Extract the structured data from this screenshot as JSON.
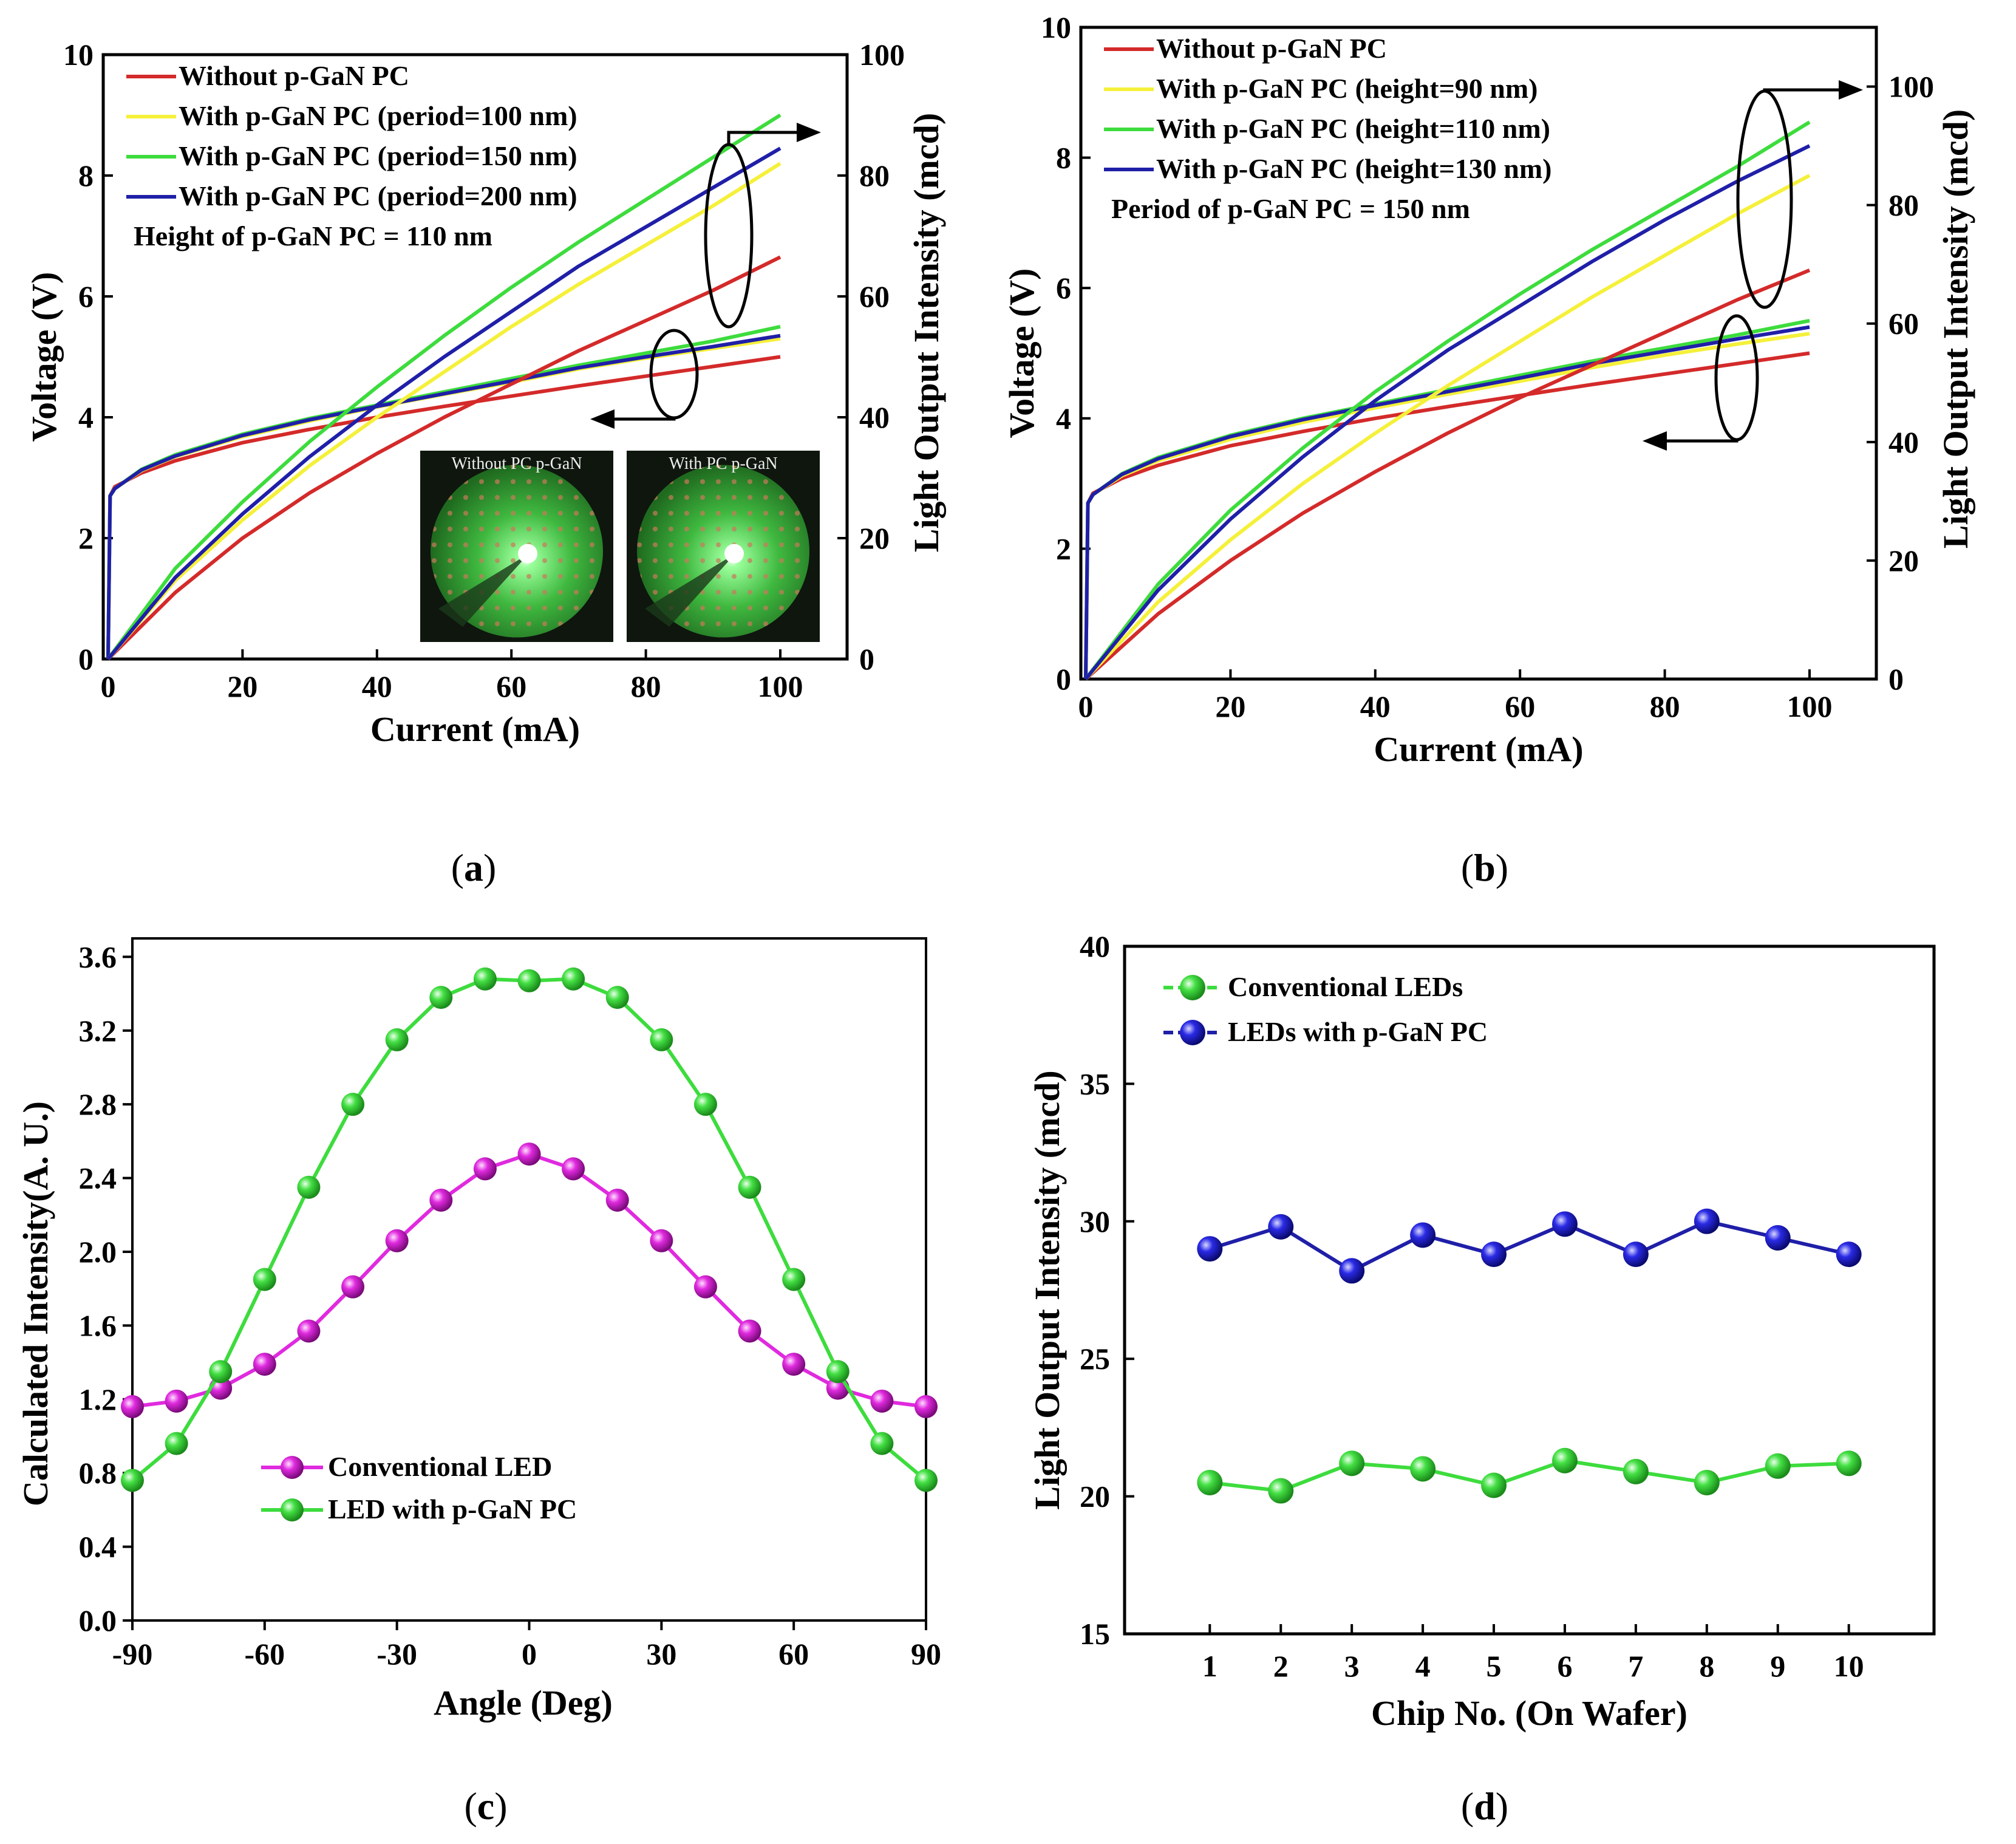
{
  "panels": {
    "a": {
      "caption": "a",
      "xlabel": "Current (mA)",
      "ylabel_left": "Voltage (V)",
      "ylabel_right": "Light Output Intensity (mcd)",
      "xticks": [
        "0",
        "20",
        "40",
        "60",
        "80",
        "100"
      ],
      "yticks_left": [
        "0",
        "2",
        "4",
        "6",
        "8",
        "10"
      ],
      "yticks_right": [
        "0",
        "20",
        "40",
        "60",
        "80",
        "100"
      ],
      "note": "Height of p-GaN PC = 110 nm",
      "legend": [
        "Without p-GaN PC",
        "With p-GaN PC (period=100 nm)",
        "With p-GaN PC (period=150 nm)",
        "With p-GaN PC (period=200 nm)"
      ],
      "inset_labels": [
        "Without PC p-GaN",
        "With PC p-GaN"
      ]
    },
    "b": {
      "caption": "b",
      "xlabel": "Current (mA)",
      "ylabel_left": "Voltage (V)",
      "ylabel_right": "Light Output Intensity (mcd)",
      "xticks": [
        "0",
        "20",
        "40",
        "60",
        "80",
        "100"
      ],
      "yticks_left": [
        "0",
        "2",
        "4",
        "6",
        "8",
        "10"
      ],
      "yticks_right": [
        "0",
        "20",
        "40",
        "60",
        "80",
        "100"
      ],
      "note": "Period of p-GaN PC = 150 nm",
      "legend": [
        "Without p-GaN PC",
        "With p-GaN PC (height=90 nm)",
        "With p-GaN PC (height=110 nm)",
        "With p-GaN PC (height=130 nm)"
      ]
    },
    "c": {
      "caption": "c",
      "xlabel": "Angle (Deg)",
      "ylabel": "Calculated Intensity(A. U.)",
      "xticks": [
        "-90",
        "-60",
        "-30",
        "0",
        "30",
        "60",
        "90"
      ],
      "yticks": [
        "0.0",
        "0.4",
        "0.8",
        "1.2",
        "1.6",
        "2.0",
        "2.4",
        "2.8",
        "3.2",
        "3.6"
      ],
      "legend": [
        "Conventional LED",
        "LED with p-GaN PC"
      ]
    },
    "d": {
      "caption": "d",
      "xlabel": "Chip No. (On Wafer)",
      "ylabel": "Light Output Intensity (mcd)",
      "xticks": [
        "1",
        "2",
        "3",
        "4",
        "5",
        "6",
        "7",
        "8",
        "9",
        "10"
      ],
      "yticks": [
        "15",
        "20",
        "25",
        "30",
        "35",
        "40"
      ],
      "legend": [
        "Conventional LEDs",
        "LEDs with p-GaN PC"
      ]
    }
  },
  "colors": {
    "red": "#d42a2a",
    "yellow": "#f5f03a",
    "green": "#3ddc3d",
    "blue": "#1f1fa8",
    "magenta": "#e02adf",
    "green_marker": "#44e044",
    "blue_marker": "#1a1ae0"
  },
  "chart_data": [
    {
      "id": "a",
      "type": "line",
      "title": "",
      "xlabel": "Current (mA)",
      "ylabel": "Voltage (V)",
      "y2label": "Light Output Intensity (mcd)",
      "xlim": [
        0,
        100
      ],
      "ylim": [
        0,
        10
      ],
      "y2lim": [
        0,
        100
      ],
      "series": [
        {
          "name": "Without p-GaN PC",
          "axis": "left",
          "x": [
            0,
            0.3,
            1,
            5,
            10,
            20,
            30,
            40,
            50,
            60,
            70,
            80,
            90,
            100
          ],
          "values": [
            0,
            2.7,
            2.85,
            3.08,
            3.28,
            3.58,
            3.8,
            4.0,
            4.18,
            4.35,
            4.52,
            4.68,
            4.84,
            5.0
          ]
        },
        {
          "name": "With p-GaN PC (period=100 nm)",
          "axis": "left",
          "x": [
            0,
            0.3,
            1,
            5,
            10,
            20,
            30,
            40,
            50,
            60,
            70,
            80,
            90,
            100
          ],
          "values": [
            0,
            2.7,
            2.82,
            3.12,
            3.35,
            3.68,
            3.94,
            4.17,
            4.38,
            4.58,
            4.8,
            4.98,
            5.14,
            5.3
          ]
        },
        {
          "name": "With p-GaN PC (period=150 nm)",
          "axis": "left",
          "x": [
            0,
            0.3,
            1,
            5,
            10,
            20,
            30,
            40,
            50,
            60,
            70,
            80,
            90,
            100
          ],
          "values": [
            0,
            2.7,
            2.82,
            3.14,
            3.38,
            3.72,
            3.98,
            4.2,
            4.42,
            4.64,
            4.86,
            5.06,
            5.26,
            5.5
          ]
        },
        {
          "name": "With p-GaN PC (period=200 nm)",
          "axis": "left",
          "x": [
            0,
            0.3,
            1,
            5,
            10,
            20,
            30,
            40,
            50,
            60,
            70,
            80,
            90,
            100
          ],
          "values": [
            0,
            2.7,
            2.82,
            3.13,
            3.36,
            3.7,
            3.96,
            4.18,
            4.39,
            4.6,
            4.82,
            5.0,
            5.17,
            5.35
          ]
        },
        {
          "name": "Without p-GaN PC",
          "axis": "right",
          "x": [
            0,
            10,
            20,
            30,
            40,
            50,
            60,
            70,
            80,
            90,
            100
          ],
          "values": [
            0,
            11,
            20,
            27.5,
            34,
            40,
            45.5,
            51,
            56,
            61,
            66.5
          ]
        },
        {
          "name": "With p-GaN PC (period=100 nm)",
          "axis": "right",
          "x": [
            0,
            10,
            20,
            30,
            40,
            50,
            60,
            70,
            80,
            90,
            100
          ],
          "values": [
            0,
            13,
            23,
            32,
            40,
            47.5,
            55,
            62,
            68.5,
            75,
            82
          ]
        },
        {
          "name": "With p-GaN PC (period=150 nm)",
          "axis": "right",
          "x": [
            0,
            10,
            20,
            30,
            40,
            50,
            60,
            70,
            80,
            90,
            100
          ],
          "values": [
            0,
            15,
            26,
            36,
            45,
            53.5,
            61.5,
            69,
            76,
            83,
            90
          ]
        },
        {
          "name": "With p-GaN PC (period=200 nm)",
          "axis": "right",
          "x": [
            0,
            10,
            20,
            30,
            40,
            50,
            60,
            70,
            80,
            90,
            100
          ],
          "values": [
            0,
            13.5,
            24,
            33.5,
            42,
            50,
            57.5,
            65,
            71.5,
            78,
            84.5
          ]
        }
      ]
    },
    {
      "id": "b",
      "type": "line",
      "title": "",
      "xlabel": "Current (mA)",
      "ylabel": "Voltage (V)",
      "y2label": "Light Output Intensity (mcd)",
      "xlim": [
        0,
        100
      ],
      "ylim": [
        0,
        10
      ],
      "y2lim": [
        0,
        110
      ],
      "series": [
        {
          "name": "Without p-GaN PC",
          "axis": "left",
          "x": [
            0,
            0.3,
            1,
            5,
            10,
            20,
            30,
            40,
            50,
            60,
            70,
            80,
            90,
            100
          ],
          "values": [
            0,
            2.7,
            2.85,
            3.08,
            3.28,
            3.58,
            3.8,
            4.0,
            4.18,
            4.35,
            4.52,
            4.68,
            4.84,
            5.0
          ]
        },
        {
          "name": "With p-GaN PC (height=90 nm)",
          "axis": "left",
          "x": [
            0,
            0.3,
            1,
            5,
            10,
            20,
            30,
            40,
            50,
            60,
            70,
            80,
            90,
            100
          ],
          "values": [
            0,
            2.7,
            2.83,
            3.12,
            3.35,
            3.68,
            3.94,
            4.16,
            4.37,
            4.57,
            4.78,
            4.97,
            5.14,
            5.3
          ]
        },
        {
          "name": "With p-GaN PC (height=110 nm)",
          "axis": "left",
          "x": [
            0,
            0.3,
            1,
            5,
            10,
            20,
            30,
            40,
            50,
            60,
            70,
            80,
            90,
            100
          ],
          "values": [
            0,
            2.7,
            2.83,
            3.15,
            3.4,
            3.74,
            4.0,
            4.22,
            4.44,
            4.66,
            4.88,
            5.08,
            5.28,
            5.5
          ]
        },
        {
          "name": "With p-GaN PC (height=130 nm)",
          "axis": "left",
          "x": [
            0,
            0.3,
            1,
            5,
            10,
            20,
            30,
            40,
            50,
            60,
            70,
            80,
            90,
            100
          ],
          "values": [
            0,
            2.7,
            2.83,
            3.14,
            3.38,
            3.72,
            3.98,
            4.2,
            4.41,
            4.62,
            4.84,
            5.03,
            5.22,
            5.4
          ]
        },
        {
          "name": "Without p-GaN PC",
          "axis": "right",
          "x": [
            0,
            10,
            20,
            30,
            40,
            50,
            60,
            70,
            80,
            90,
            100
          ],
          "values": [
            0,
            11,
            20,
            28,
            35,
            41.5,
            47.5,
            53,
            58.5,
            64,
            69
          ]
        },
        {
          "name": "With p-GaN PC (height=90 nm)",
          "axis": "right",
          "x": [
            0,
            10,
            20,
            30,
            40,
            50,
            60,
            70,
            80,
            90,
            100
          ],
          "values": [
            0,
            13,
            23.5,
            33,
            41.5,
            49.5,
            57,
            64.5,
            71.5,
            78.5,
            85
          ]
        },
        {
          "name": "With p-GaN PC (height=110 nm)",
          "axis": "right",
          "x": [
            0,
            10,
            20,
            30,
            40,
            50,
            60,
            70,
            80,
            90,
            100
          ],
          "values": [
            0,
            16,
            28.5,
            39,
            48.5,
            57,
            65,
            72.5,
            79.5,
            86.5,
            94
          ]
        },
        {
          "name": "With p-GaN PC (height=130 nm)",
          "axis": "right",
          "x": [
            0,
            10,
            20,
            30,
            40,
            50,
            60,
            70,
            80,
            90,
            100
          ],
          "values": [
            0,
            15,
            27,
            37.5,
            47,
            55.5,
            63,
            70.5,
            77.5,
            84,
            90
          ]
        }
      ]
    },
    {
      "id": "c",
      "type": "line",
      "title": "",
      "xlabel": "Angle (Deg)",
      "ylabel": "Calculated Intensity(A. U.)",
      "xlim": [
        -90,
        90
      ],
      "ylim": [
        0,
        3.7
      ],
      "x": [
        -90,
        -80,
        -70,
        -60,
        -50,
        -40,
        -30,
        -20,
        -10,
        0,
        10,
        20,
        30,
        40,
        50,
        60,
        70,
        80,
        90
      ],
      "series": [
        {
          "name": "Conventional LED",
          "values": [
            1.16,
            1.19,
            1.26,
            1.39,
            1.57,
            1.81,
            2.06,
            2.28,
            2.45,
            2.53,
            2.45,
            2.28,
            2.06,
            1.81,
            1.57,
            1.39,
            1.26,
            1.19,
            1.16
          ]
        },
        {
          "name": "LED with p-GaN PC",
          "values": [
            0.76,
            0.96,
            1.35,
            1.85,
            2.35,
            2.8,
            3.15,
            3.38,
            3.48,
            3.47,
            3.48,
            3.38,
            3.15,
            2.8,
            2.35,
            1.85,
            1.35,
            0.96,
            0.76
          ]
        }
      ]
    },
    {
      "id": "d",
      "type": "line",
      "title": "",
      "xlabel": "Chip No. (On Wafer)",
      "ylabel": "Light Output Intensity (mcd)",
      "xlim": [
        -0.2,
        11.2
      ],
      "ylim": [
        15,
        40
      ],
      "categories": [
        "1",
        "2",
        "3",
        "4",
        "5",
        "6",
        "7",
        "8",
        "9",
        "10"
      ],
      "series": [
        {
          "name": "Conventional LEDs",
          "values": [
            20.5,
            20.2,
            21.2,
            21.0,
            20.4,
            21.3,
            20.9,
            20.5,
            21.1,
            21.2
          ]
        },
        {
          "name": "LEDs with p-GaN PC",
          "values": [
            29.0,
            29.8,
            28.2,
            29.5,
            28.8,
            29.9,
            28.8,
            30.0,
            29.4,
            28.8
          ]
        }
      ]
    }
  ]
}
